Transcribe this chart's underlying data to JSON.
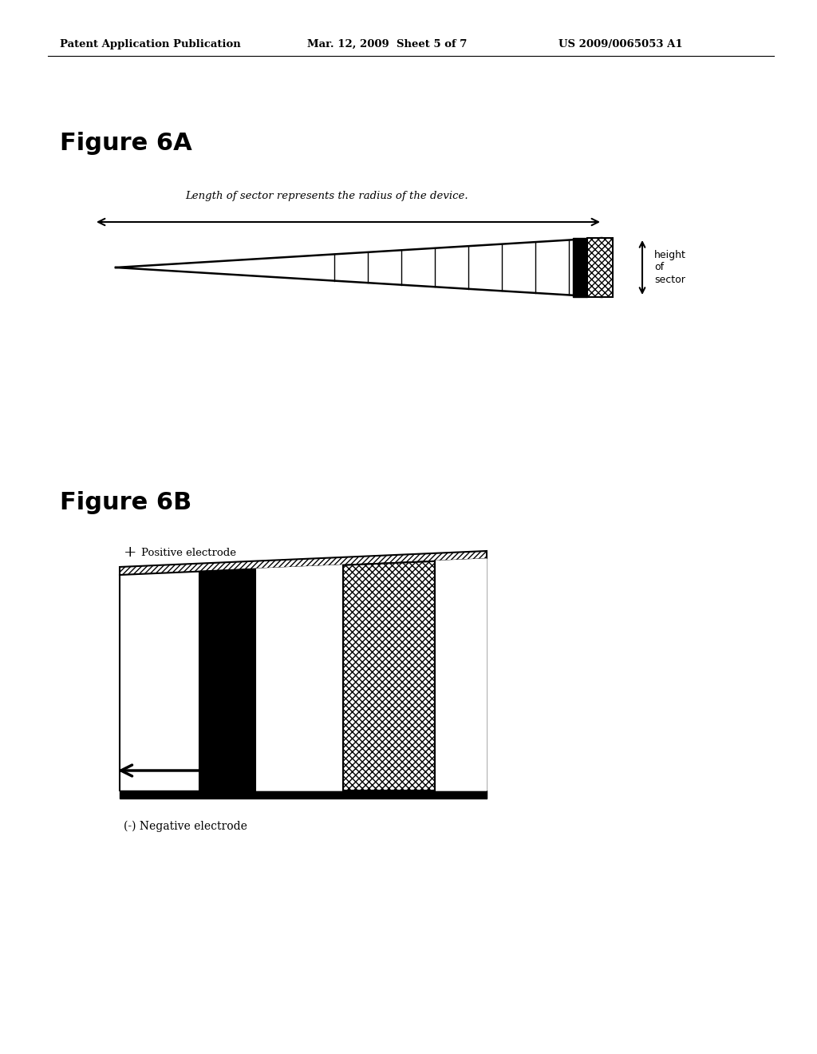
{
  "header_left": "Patent Application Publication",
  "header_mid": "Mar. 12, 2009  Sheet 5 of 7",
  "header_right": "US 2009/0065053 A1",
  "fig6a_title": "Figure 6A",
  "fig6a_caption": "Length of sector represents the radius of the device.",
  "fig6a_height_label": "height\nof\nsector",
  "fig6b_title": "Figure 6B",
  "fig6b_pos_plus": "+",
  "fig6b_pos_text": "Positive electrode",
  "fig6b_neg_label": "(-) Negative electrode",
  "bg_color": "#ffffff",
  "text_color": "#000000",
  "line_color": "#000000"
}
